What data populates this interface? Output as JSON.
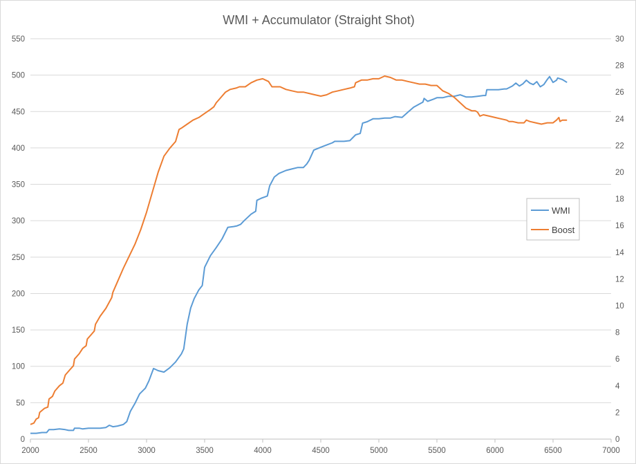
{
  "chart_data": {
    "type": "line",
    "title": "WMI + Accumulator (Straight Shot)",
    "xlabel": "",
    "ylabel": "",
    "y2label": "",
    "xlim": [
      2000,
      7000
    ],
    "ylim": [
      0,
      550
    ],
    "y2lim": [
      0,
      30
    ],
    "x_ticks": [
      2000,
      2500,
      3000,
      3500,
      4000,
      4500,
      5000,
      5500,
      6000,
      6500,
      7000
    ],
    "y_ticks": [
      0,
      50,
      100,
      150,
      200,
      250,
      300,
      350,
      400,
      450,
      500,
      550
    ],
    "y2_ticks": [
      0,
      2,
      4,
      6,
      8,
      10,
      12,
      14,
      16,
      18,
      20,
      22,
      24,
      26,
      28,
      30
    ],
    "grid": true,
    "legend_position": "right",
    "series": [
      {
        "name": "WMI",
        "axis": "left",
        "color": "#5b9bd5",
        "points": [
          [
            2000,
            8
          ],
          [
            2050,
            8
          ],
          [
            2100,
            9
          ],
          [
            2140,
            9
          ],
          [
            2160,
            13
          ],
          [
            2200,
            13
          ],
          [
            2250,
            14
          ],
          [
            2300,
            13
          ],
          [
            2330,
            12
          ],
          [
            2370,
            12
          ],
          [
            2380,
            15
          ],
          [
            2420,
            15
          ],
          [
            2450,
            14
          ],
          [
            2500,
            15
          ],
          [
            2550,
            15
          ],
          [
            2600,
            15
          ],
          [
            2650,
            16
          ],
          [
            2680,
            19
          ],
          [
            2710,
            17
          ],
          [
            2750,
            18
          ],
          [
            2800,
            20
          ],
          [
            2830,
            24
          ],
          [
            2860,
            38
          ],
          [
            2900,
            49
          ],
          [
            2940,
            62
          ],
          [
            2990,
            70
          ],
          [
            3020,
            80
          ],
          [
            3060,
            97
          ],
          [
            3100,
            94
          ],
          [
            3150,
            92
          ],
          [
            3200,
            98
          ],
          [
            3250,
            106
          ],
          [
            3300,
            117
          ],
          [
            3320,
            124
          ],
          [
            3350,
            158
          ],
          [
            3380,
            180
          ],
          [
            3410,
            193
          ],
          [
            3450,
            205
          ],
          [
            3480,
            211
          ],
          [
            3500,
            236
          ],
          [
            3550,
            252
          ],
          [
            3600,
            263
          ],
          [
            3650,
            275
          ],
          [
            3700,
            291
          ],
          [
            3750,
            292
          ],
          [
            3780,
            293
          ],
          [
            3810,
            295
          ],
          [
            3840,
            300
          ],
          [
            3900,
            309
          ],
          [
            3940,
            313
          ],
          [
            3950,
            328
          ],
          [
            3990,
            331
          ],
          [
            4040,
            334
          ],
          [
            4060,
            348
          ],
          [
            4100,
            360
          ],
          [
            4140,
            365
          ],
          [
            4200,
            369
          ],
          [
            4250,
            371
          ],
          [
            4300,
            373
          ],
          [
            4350,
            373
          ],
          [
            4380,
            378
          ],
          [
            4400,
            383
          ],
          [
            4440,
            397
          ],
          [
            4500,
            401
          ],
          [
            4550,
            404
          ],
          [
            4600,
            407
          ],
          [
            4620,
            409
          ],
          [
            4700,
            409
          ],
          [
            4750,
            410
          ],
          [
            4800,
            418
          ],
          [
            4840,
            420
          ],
          [
            4860,
            434
          ],
          [
            4900,
            436
          ],
          [
            4950,
            440
          ],
          [
            5000,
            440
          ],
          [
            5050,
            441
          ],
          [
            5100,
            441
          ],
          [
            5140,
            443
          ],
          [
            5200,
            442
          ],
          [
            5250,
            449
          ],
          [
            5300,
            456
          ],
          [
            5380,
            463
          ],
          [
            5390,
            468
          ],
          [
            5420,
            464
          ],
          [
            5470,
            467
          ],
          [
            5500,
            469
          ],
          [
            5550,
            469
          ],
          [
            5600,
            471
          ],
          [
            5650,
            471
          ],
          [
            5700,
            473
          ],
          [
            5750,
            470
          ],
          [
            5800,
            470
          ],
          [
            5850,
            471
          ],
          [
            5900,
            472
          ],
          [
            5920,
            472
          ],
          [
            5930,
            480
          ],
          [
            5980,
            480
          ],
          [
            6030,
            480
          ],
          [
            6080,
            481
          ],
          [
            6100,
            481
          ],
          [
            6150,
            485
          ],
          [
            6180,
            489
          ],
          [
            6210,
            485
          ],
          [
            6240,
            488
          ],
          [
            6270,
            493
          ],
          [
            6300,
            489
          ],
          [
            6330,
            487
          ],
          [
            6360,
            491
          ],
          [
            6390,
            484
          ],
          [
            6420,
            487
          ],
          [
            6450,
            494
          ],
          [
            6470,
            498
          ],
          [
            6500,
            490
          ],
          [
            6530,
            493
          ],
          [
            6540,
            496
          ],
          [
            6580,
            494
          ],
          [
            6620,
            490
          ]
        ]
      },
      {
        "name": "Boost",
        "axis": "right",
        "color": "#ed7d31",
        "points": [
          [
            2000,
            1.1
          ],
          [
            2030,
            1.2
          ],
          [
            2050,
            1.5
          ],
          [
            2070,
            1.6
          ],
          [
            2080,
            2.0
          ],
          [
            2120,
            2.3
          ],
          [
            2150,
            2.4
          ],
          [
            2160,
            3.0
          ],
          [
            2190,
            3.2
          ],
          [
            2210,
            3.6
          ],
          [
            2250,
            4.0
          ],
          [
            2280,
            4.2
          ],
          [
            2300,
            4.8
          ],
          [
            2340,
            5.2
          ],
          [
            2370,
            5.5
          ],
          [
            2380,
            6.0
          ],
          [
            2420,
            6.4
          ],
          [
            2450,
            6.8
          ],
          [
            2480,
            7.0
          ],
          [
            2490,
            7.5
          ],
          [
            2520,
            7.8
          ],
          [
            2550,
            8.1
          ],
          [
            2560,
            8.6
          ],
          [
            2600,
            9.2
          ],
          [
            2650,
            9.8
          ],
          [
            2700,
            10.6
          ],
          [
            2710,
            11.0
          ],
          [
            2750,
            11.8
          ],
          [
            2800,
            12.8
          ],
          [
            2850,
            13.7
          ],
          [
            2900,
            14.6
          ],
          [
            2950,
            15.7
          ],
          [
            3000,
            17.0
          ],
          [
            3050,
            18.5
          ],
          [
            3100,
            20.0
          ],
          [
            3150,
            21.2
          ],
          [
            3200,
            21.8
          ],
          [
            3250,
            22.3
          ],
          [
            3280,
            23.2
          ],
          [
            3300,
            23.3
          ],
          [
            3350,
            23.6
          ],
          [
            3400,
            23.9
          ],
          [
            3450,
            24.1
          ],
          [
            3500,
            24.4
          ],
          [
            3550,
            24.7
          ],
          [
            3580,
            24.9
          ],
          [
            3600,
            25.2
          ],
          [
            3650,
            25.7
          ],
          [
            3680,
            26.0
          ],
          [
            3720,
            26.2
          ],
          [
            3770,
            26.3
          ],
          [
            3800,
            26.4
          ],
          [
            3850,
            26.4
          ],
          [
            3900,
            26.7
          ],
          [
            3950,
            26.9
          ],
          [
            4000,
            27.0
          ],
          [
            4050,
            26.8
          ],
          [
            4080,
            26.4
          ],
          [
            4150,
            26.4
          ],
          [
            4200,
            26.2
          ],
          [
            4250,
            26.1
          ],
          [
            4300,
            26.0
          ],
          [
            4350,
            26.0
          ],
          [
            4400,
            25.9
          ],
          [
            4450,
            25.8
          ],
          [
            4500,
            25.7
          ],
          [
            4550,
            25.8
          ],
          [
            4600,
            26.0
          ],
          [
            4650,
            26.1
          ],
          [
            4700,
            26.2
          ],
          [
            4750,
            26.3
          ],
          [
            4790,
            26.4
          ],
          [
            4800,
            26.7
          ],
          [
            4850,
            26.9
          ],
          [
            4900,
            26.9
          ],
          [
            4950,
            27.0
          ],
          [
            5000,
            27.0
          ],
          [
            5050,
            27.2
          ],
          [
            5100,
            27.1
          ],
          [
            5150,
            26.9
          ],
          [
            5200,
            26.9
          ],
          [
            5250,
            26.8
          ],
          [
            5300,
            26.7
          ],
          [
            5350,
            26.6
          ],
          [
            5400,
            26.6
          ],
          [
            5450,
            26.5
          ],
          [
            5500,
            26.5
          ],
          [
            5550,
            26.1
          ],
          [
            5600,
            25.9
          ],
          [
            5650,
            25.6
          ],
          [
            5700,
            25.2
          ],
          [
            5750,
            24.8
          ],
          [
            5800,
            24.6
          ],
          [
            5830,
            24.6
          ],
          [
            5850,
            24.5
          ],
          [
            5870,
            24.2
          ],
          [
            5900,
            24.3
          ],
          [
            5950,
            24.2
          ],
          [
            6000,
            24.1
          ],
          [
            6050,
            24.0
          ],
          [
            6100,
            23.9
          ],
          [
            6120,
            23.8
          ],
          [
            6150,
            23.8
          ],
          [
            6200,
            23.7
          ],
          [
            6250,
            23.7
          ],
          [
            6270,
            23.9
          ],
          [
            6300,
            23.8
          ],
          [
            6350,
            23.7
          ],
          [
            6400,
            23.6
          ],
          [
            6450,
            23.7
          ],
          [
            6500,
            23.7
          ],
          [
            6530,
            23.9
          ],
          [
            6550,
            24.1
          ],
          [
            6560,
            23.8
          ],
          [
            6580,
            23.9
          ],
          [
            6620,
            23.9
          ]
        ]
      }
    ]
  }
}
